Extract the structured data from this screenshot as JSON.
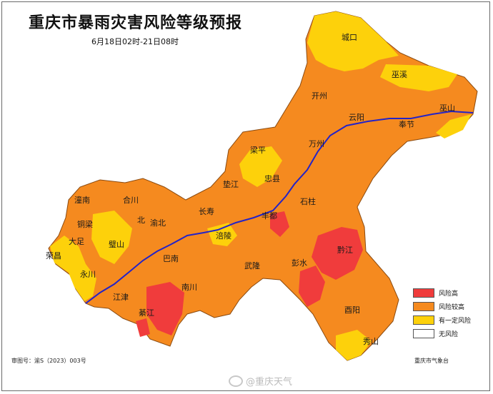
{
  "title": "重庆市暴雨灾害风险等级预报",
  "subtitle": "6月18日02时-21日08时",
  "legend": [
    {
      "label": "风险高",
      "color": "#f03c3c"
    },
    {
      "label": "风险较高",
      "color": "#f58a1f"
    },
    {
      "label": "有一定风险",
      "color": "#fdd10b"
    },
    {
      "label": "无风险",
      "color": "#ffffff"
    }
  ],
  "map_number": "审图号：渝S（2023）003号",
  "issuer": "重庆市气象台",
  "watermark": "@重庆天气",
  "river_color": "#2323c8",
  "counties": [
    {
      "name": "城口"
    },
    {
      "name": "巫溪"
    },
    {
      "name": "巫山"
    },
    {
      "name": "开州"
    },
    {
      "name": "云阳"
    },
    {
      "name": "奉节"
    },
    {
      "name": "万州"
    },
    {
      "name": "梁平"
    },
    {
      "name": "忠县"
    },
    {
      "name": "垫江"
    },
    {
      "name": "石柱"
    },
    {
      "name": "丰都"
    },
    {
      "name": "长寿"
    },
    {
      "name": "涪陵"
    },
    {
      "name": "武隆"
    },
    {
      "name": "彭水"
    },
    {
      "name": "黔江"
    },
    {
      "name": "酉阳"
    },
    {
      "name": "秀山"
    },
    {
      "name": "南川"
    },
    {
      "name": "綦江"
    },
    {
      "name": "江津"
    },
    {
      "name": "永川"
    },
    {
      "name": "荣昌"
    },
    {
      "name": "大足"
    },
    {
      "name": "铜梁"
    },
    {
      "name": "潼南"
    },
    {
      "name": "合川"
    },
    {
      "name": "璧山"
    },
    {
      "name": "巴南"
    },
    {
      "name": "渝北"
    },
    {
      "name": "北"
    }
  ]
}
